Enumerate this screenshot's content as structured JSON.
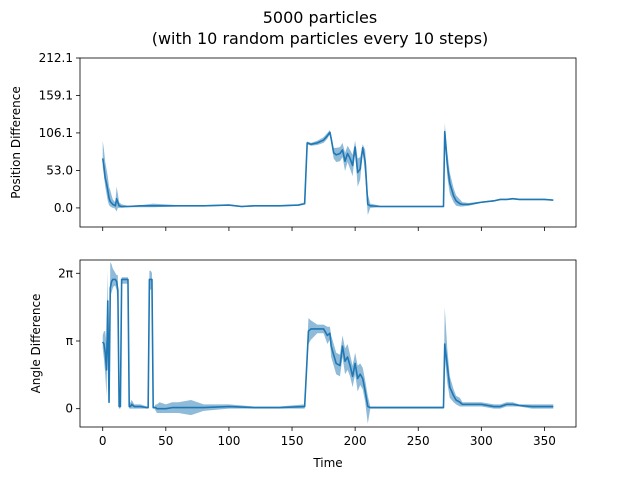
{
  "chart_data": {
    "title": "5000 particles",
    "subtitle": "(with 10 random particles every 10 steps)",
    "xlabel": "Time",
    "xlim": [
      -18,
      375
    ],
    "x_ticks": [
      0,
      50,
      100,
      150,
      200,
      250,
      300,
      350
    ],
    "x_tick_labels": [
      "0",
      "50",
      "100",
      "150",
      "200",
      "250",
      "300",
      "350"
    ],
    "colors": {
      "line": "#1f77b4",
      "band": "#1f77b4"
    },
    "panels": [
      {
        "type": "line",
        "ylabel": "Position Difference",
        "ylim": [
          -27,
          212.1
        ],
        "y_ticks": [
          0.0,
          53.0,
          106.1,
          159.1,
          212.1
        ],
        "y_tick_labels": [
          "0.0",
          "53.0",
          "106.1",
          "159.1",
          "212.1"
        ],
        "series": [
          {
            "x": [
              0,
              1,
              2,
              3,
              4,
              5,
              6,
              7,
              8,
              9,
              10,
              11,
              12,
              13,
              15,
              20,
              30,
              40,
              60,
              80,
              100,
              110,
              120,
              140,
              155,
              160,
              162,
              165,
              170,
              175,
              178,
              180,
              181,
              183,
              185,
              188,
              190,
              192,
              194,
              196,
              198,
              200,
              202,
              204,
              206,
              208,
              210,
              212,
              220,
              240,
              260,
              268,
              270,
              271,
              273,
              275,
              278,
              280,
              283,
              285,
              290,
              300,
              310,
              315,
              320,
              325,
              330,
              340,
              350,
              357
            ],
            "y": [
              70,
              58,
              42,
              35,
              25,
              14,
              9,
              7,
              5,
              4,
              3,
              13,
              8,
              3,
              2,
              2,
              3,
              3,
              3,
              3,
              4,
              2,
              3,
              3,
              4,
              6,
              92,
              90,
              92,
              96,
              102,
              107,
              98,
              78,
              75,
              77,
              82,
              66,
              77,
              70,
              60,
              86,
              50,
              55,
              85,
              65,
              5,
              3,
              2,
              2,
              2,
              2,
              2,
              108,
              62,
              35,
              17,
              10,
              6,
              5,
              5,
              8,
              10,
              12,
              12,
              13,
              12,
              12,
              12,
              11
            ],
            "band": [
              [
                58,
                95
              ],
              [
                45,
                82
              ],
              [
                30,
                65
              ],
              [
                20,
                55
              ],
              [
                10,
                45
              ],
              [
                4,
                30
              ],
              [
                2,
                25
              ],
              [
                1,
                18
              ],
              [
                0,
                12
              ],
              [
                0,
                10
              ],
              [
                -2,
                8
              ],
              [
                -5,
                30
              ],
              [
                0,
                20
              ],
              [
                0,
                8
              ],
              [
                0,
                5
              ],
              [
                1,
                3
              ],
              [
                1,
                4
              ],
              [
                1,
                6
              ],
              [
                2,
                4
              ],
              [
                2,
                4
              ],
              [
                3,
                5
              ],
              [
                1,
                3
              ],
              [
                2,
                4
              ],
              [
                2,
                4
              ],
              [
                3,
                5
              ],
              [
                5,
                8
              ],
              [
                90,
                94
              ],
              [
                88,
                92
              ],
              [
                89,
                95
              ],
              [
                92,
                100
              ],
              [
                98,
                106
              ],
              [
                104,
                110
              ],
              [
                92,
                104
              ],
              [
                70,
                85
              ],
              [
                65,
                85
              ],
              [
                66,
                86
              ],
              [
                72,
                92
              ],
              [
                52,
                78
              ],
              [
                65,
                88
              ],
              [
                55,
                82
              ],
              [
                45,
                75
              ],
              [
                78,
                95
              ],
              [
                30,
                70
              ],
              [
                40,
                72
              ],
              [
                80,
                90
              ],
              [
                45,
                82
              ],
              [
                -10,
                20
              ],
              [
                0,
                6
              ],
              [
                1,
                3
              ],
              [
                1,
                3
              ],
              [
                1,
                3
              ],
              [
                1,
                3
              ],
              [
                1,
                3
              ],
              [
                100,
                120
              ],
              [
                45,
                80
              ],
              [
                20,
                50
              ],
              [
                8,
                28
              ],
              [
                3,
                18
              ],
              [
                2,
                12
              ],
              [
                2,
                8
              ],
              [
                3,
                7
              ],
              [
                7,
                9
              ],
              [
                9,
                11
              ],
              [
                11,
                13
              ],
              [
                11,
                13
              ],
              [
                12,
                14
              ],
              [
                11,
                13
              ],
              [
                11,
                13
              ],
              [
                11,
                13
              ],
              [
                10,
                12
              ]
            ]
          }
        ]
      },
      {
        "type": "line",
        "ylabel": "Angle Difference",
        "ylim": [
          -0.85,
          6.9
        ],
        "y_ticks": [
          0,
          3.14159,
          6.28318
        ],
        "y_tick_labels": [
          "0",
          "π",
          "2π"
        ],
        "series": [
          {
            "x": [
              0,
              1,
              2,
              3,
              4,
              5,
              6,
              7,
              8,
              9,
              10,
              11,
              12,
              13,
              14,
              15,
              16,
              17,
              18,
              19,
              20,
              21,
              22,
              23,
              25,
              30,
              35,
              36,
              37,
              38,
              39,
              40,
              41,
              42,
              43,
              45,
              50,
              55,
              60,
              70,
              80,
              100,
              120,
              140,
              160,
              162,
              163,
              165,
              170,
              175,
              178,
              180,
              181,
              183,
              185,
              188,
              190,
              192,
              194,
              196,
              198,
              200,
              202,
              204,
              206,
              208,
              210,
              212,
              220,
              240,
              260,
              268,
              270,
              271,
              273,
              275,
              278,
              280,
              283,
              285,
              290,
              300,
              310,
              315,
              320,
              325,
              330,
              340,
              350,
              357
            ],
            "y": [
              3.1,
              3.0,
              2.6,
              1.8,
              5.0,
              0.3,
              5.6,
              5.9,
              6.0,
              6.0,
              6.0,
              5.9,
              5.5,
              0.1,
              0.1,
              6.0,
              6.0,
              6.0,
              6.0,
              6.0,
              6.0,
              0.1,
              0.1,
              0.2,
              0.1,
              0.1,
              0.05,
              0.05,
              6.0,
              6.0,
              6.0,
              0.05,
              0.05,
              0.05,
              0.0,
              0.0,
              0.0,
              0.05,
              0.05,
              0.05,
              0.05,
              0.1,
              0.05,
              0.05,
              0.1,
              2.4,
              3.6,
              3.7,
              3.7,
              3.7,
              3.4,
              3.5,
              2.9,
              2.5,
              2.1,
              2.0,
              2.9,
              2.2,
              2.4,
              2.0,
              1.5,
              2.1,
              1.4,
              1.6,
              1.4,
              0.8,
              0.1,
              0.05,
              0.05,
              0.05,
              0.05,
              0.05,
              0.05,
              3.0,
              2.0,
              1.0,
              0.6,
              0.4,
              0.3,
              0.2,
              0.2,
              0.2,
              0.1,
              0.1,
              0.2,
              0.2,
              0.15,
              0.1,
              0.1,
              0.1
            ],
            "band": [
              [
                2.8,
                3.4
              ],
              [
                2.3,
                3.6
              ],
              [
                1.6,
                3.6
              ],
              [
                0.6,
                3.0
              ],
              [
                3.5,
                6.4
              ],
              [
                0.0,
                0.6
              ],
              [
                5.2,
                6.8
              ],
              [
                5.4,
                6.7
              ],
              [
                5.6,
                6.5
              ],
              [
                5.7,
                6.4
              ],
              [
                5.7,
                6.3
              ],
              [
                5.5,
                6.2
              ],
              [
                4.8,
                6.2
              ],
              [
                0.0,
                0.3
              ],
              [
                0.0,
                0.3
              ],
              [
                5.8,
                6.1
              ],
              [
                5.8,
                6.1
              ],
              [
                5.8,
                6.1
              ],
              [
                5.8,
                6.1
              ],
              [
                5.8,
                6.1
              ],
              [
                5.8,
                6.1
              ],
              [
                0.0,
                0.2
              ],
              [
                0.0,
                0.3
              ],
              [
                0.0,
                0.4
              ],
              [
                0.0,
                0.2
              ],
              [
                0.0,
                0.2
              ],
              [
                0.0,
                0.1
              ],
              [
                0.0,
                0.1
              ],
              [
                5.6,
                6.4
              ],
              [
                5.5,
                6.4
              ],
              [
                5.6,
                6.3
              ],
              [
                0.0,
                0.1
              ],
              [
                0.0,
                0.1
              ],
              [
                -0.1,
                0.2
              ],
              [
                -0.2,
                0.2
              ],
              [
                -0.2,
                0.3
              ],
              [
                -0.2,
                0.2
              ],
              [
                -0.2,
                0.3
              ],
              [
                -0.2,
                0.3
              ],
              [
                -0.3,
                0.4
              ],
              [
                -0.1,
                0.2
              ],
              [
                0.0,
                0.2
              ],
              [
                0.0,
                0.1
              ],
              [
                0.0,
                0.1
              ],
              [
                0.0,
                0.2
              ],
              [
                2.0,
                2.8
              ],
              [
                3.0,
                4.2
              ],
              [
                3.2,
                4.1
              ],
              [
                3.5,
                3.9
              ],
              [
                3.5,
                3.9
              ],
              [
                3.0,
                3.8
              ],
              [
                3.2,
                3.8
              ],
              [
                2.4,
                3.4
              ],
              [
                2.0,
                3.0
              ],
              [
                1.6,
                2.6
              ],
              [
                1.5,
                2.5
              ],
              [
                2.4,
                3.4
              ],
              [
                1.6,
                2.8
              ],
              [
                1.8,
                3.0
              ],
              [
                1.5,
                2.5
              ],
              [
                1.0,
                2.0
              ],
              [
                1.6,
                2.6
              ],
              [
                0.8,
                2.0
              ],
              [
                1.1,
                2.1
              ],
              [
                0.9,
                1.9
              ],
              [
                0.3,
                1.3
              ],
              [
                -0.7,
                0.6
              ],
              [
                0.0,
                0.1
              ],
              [
                0.0,
                0.1
              ],
              [
                0.0,
                0.1
              ],
              [
                0.0,
                0.1
              ],
              [
                0.0,
                0.1
              ],
              [
                0.0,
                0.1
              ],
              [
                2.4,
                4.7
              ],
              [
                1.2,
                2.8
              ],
              [
                0.5,
                1.5
              ],
              [
                0.3,
                0.9
              ],
              [
                0.2,
                0.6
              ],
              [
                0.1,
                0.5
              ],
              [
                0.1,
                0.3
              ],
              [
                0.1,
                0.3
              ],
              [
                0.1,
                0.3
              ],
              [
                0.0,
                0.2
              ],
              [
                0.0,
                0.2
              ],
              [
                0.1,
                0.3
              ],
              [
                0.1,
                0.3
              ],
              [
                0.1,
                0.2
              ],
              [
                0.0,
                0.2
              ],
              [
                0.0,
                0.2
              ],
              [
                0.0,
                0.2
              ]
            ]
          }
        ]
      }
    ]
  }
}
